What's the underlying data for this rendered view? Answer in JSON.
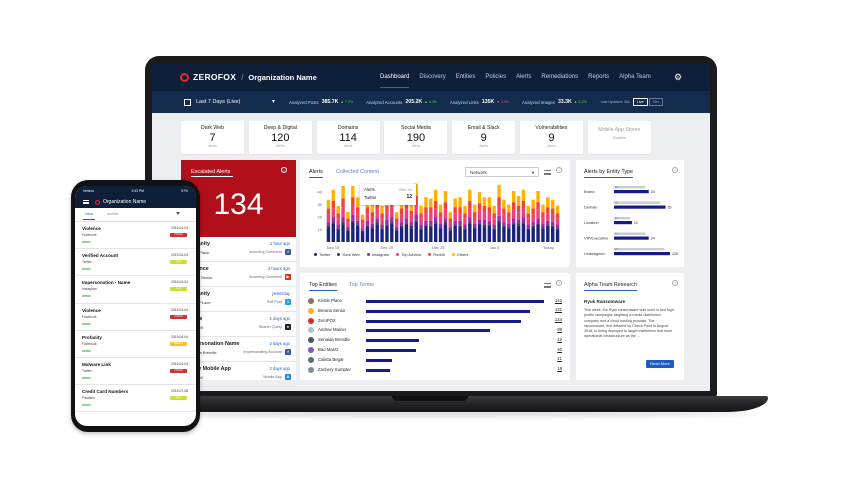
{
  "nav": {
    "logo": "ZEROFOX",
    "separator": "/",
    "org": "Organization Name",
    "links": [
      "Dashboard",
      "Discovery",
      "Entities",
      "Policies",
      "Alerts",
      "Remediations",
      "Reports",
      "Alpha Team"
    ],
    "active_link": "Dashboard"
  },
  "subbar": {
    "date_range": "Last 7 Days (Live)",
    "stats": [
      {
        "label": "Analyzed Posts",
        "value": "385.7",
        "suffix": "K",
        "change": "7.2%",
        "dir": "up"
      },
      {
        "label": "Analyzed Accounts",
        "value": "205.2",
        "suffix": "K",
        "change": "4.4%",
        "dir": "up"
      },
      {
        "label": "Analyzed Links",
        "value": "135",
        "suffix": "K",
        "change": "3.4%",
        "dir": "down"
      },
      {
        "label": "Analyzed Images",
        "value": "33.3",
        "suffix": "K",
        "change": "3.2%",
        "dir": "up"
      }
    ],
    "last_updated": "Last Updated: 30s",
    "live": "Live",
    "seconds": "30s"
  },
  "cards": [
    {
      "title": "Dark Web",
      "count": "7",
      "sub": "Alerts"
    },
    {
      "title": "Deep & Digital",
      "count": "120",
      "sub": "Alerts"
    },
    {
      "title": "Domains",
      "count": "114",
      "sub": "Alerts"
    },
    {
      "title": "Social Media",
      "count": "190",
      "sub": "Alerts"
    },
    {
      "title": "Email & Slack",
      "count": "9",
      "sub": "Alerts"
    },
    {
      "title": "Vulnerabilities",
      "count": "9",
      "sub": "Alerts"
    },
    {
      "title": "Mobile App Stores",
      "count": "",
      "sub": "Disabled"
    }
  ],
  "escalated": {
    "title": "Escalated Alerts",
    "count": "134",
    "items": [
      {
        "name": "Profanity",
        "person": "Kristle Place",
        "time": "1 hour ago",
        "source": "Incoming Comment",
        "icon": "f",
        "icon_color": "#3b5998"
      },
      {
        "name": "Violence",
        "person": "Breana Senior",
        "time": "3 hours ago",
        "source": "Incoming Comment",
        "icon": "▶",
        "icon_color": "#e62117"
      },
      {
        "name": "Profanity",
        "person": "Kristle PLace",
        "time": "yesterday",
        "source": "Self Post",
        "icon": "t",
        "icon_color": "#1da1f2"
      },
      {
        "name": "Drugs",
        "person": "ZeroFOX",
        "time": "2 days ago",
        "source": "Search Query",
        "icon": "●",
        "icon_color": "#222222"
      },
      {
        "name": "Impersonation Name",
        "person": "Senaida Brendle",
        "time": "2 days ago",
        "source": "Impersonating Account",
        "icon": "f",
        "icon_color": "#3b5998"
      },
      {
        "name": "Risky Mobile App",
        "person": "ZeroFOX",
        "time": "2 days ago",
        "source": "Mobile App",
        "icon": "A",
        "icon_color": "#1e88e5"
      }
    ]
  },
  "alerts_panel": {
    "tab_active": "Alerts",
    "tab_inactive": "Collected Content",
    "network": "Network",
    "tooltip": {
      "label": "Alerts",
      "date": "Dec 21",
      "source": "Twitter",
      "value": "12"
    },
    "legend": [
      {
        "name": "Twitter",
        "color": "#1a237e"
      },
      {
        "name": "Dark Web",
        "color": "#3d3d3d"
      },
      {
        "name": "Instagram",
        "color": "#9c27b0"
      },
      {
        "name": "Trip Advisor",
        "color": "#ec407a"
      },
      {
        "name": "Reddit",
        "color": "#f44336"
      },
      {
        "name": "Others",
        "color": "#ffb300"
      }
    ]
  },
  "chart_data": {
    "type": "bar",
    "stacked": true,
    "ylim": [
      0,
      45
    ],
    "yticks": [
      "40",
      "30",
      "20",
      "10"
    ],
    "xticks": [
      "Dec 15",
      "Dec 20",
      "Dec 25",
      "Jan 5",
      "Today"
    ],
    "series": [
      {
        "name": "Twitter",
        "color": "#1a237e",
        "values": [
          12,
          15,
          10,
          14,
          9,
          16,
          13,
          8,
          12,
          11,
          14,
          10,
          13,
          15,
          9,
          12,
          14,
          11,
          16,
          10,
          13,
          12,
          15,
          11,
          14,
          9,
          13,
          12,
          10,
          15,
          11,
          14,
          12,
          13,
          10,
          16,
          12,
          11,
          14,
          13,
          15,
          10,
          12,
          14,
          11,
          13,
          12,
          10
        ]
      },
      {
        "name": "Dark Web",
        "color": "#3d3d3d",
        "values": [
          1,
          1,
          1,
          2,
          1,
          1,
          1,
          1,
          1,
          1,
          2,
          1,
          1,
          1,
          1,
          1,
          1,
          2,
          1,
          1,
          1,
          1,
          1,
          1,
          2,
          1,
          1,
          1,
          1,
          1,
          1,
          1,
          2,
          1,
          1,
          1,
          1,
          1,
          1,
          2,
          1,
          1,
          1,
          1,
          1,
          1,
          1,
          1
        ]
      },
      {
        "name": "Instagram",
        "color": "#9c27b0",
        "values": [
          3,
          4,
          3,
          4,
          2,
          5,
          3,
          2,
          4,
          3,
          3,
          3,
          4,
          4,
          2,
          3,
          4,
          3,
          5,
          3,
          3,
          4,
          4,
          3,
          3,
          2,
          3,
          4,
          3,
          4,
          3,
          3,
          4,
          3,
          3,
          4,
          3,
          3,
          4,
          3,
          4,
          3,
          3,
          4,
          3,
          3,
          3,
          3
        ]
      },
      {
        "name": "Trip Advisor",
        "color": "#ec407a",
        "values": [
          6,
          7,
          5,
          8,
          4,
          7,
          6,
          4,
          6,
          5,
          7,
          5,
          6,
          8,
          4,
          6,
          7,
          5,
          8,
          5,
          6,
          6,
          7,
          5,
          7,
          4,
          6,
          6,
          5,
          7,
          5,
          7,
          6,
          6,
          5,
          8,
          6,
          5,
          7,
          6,
          7,
          5,
          6,
          7,
          5,
          6,
          6,
          5
        ]
      },
      {
        "name": "Reddit",
        "color": "#f44336",
        "values": [
          5,
          6,
          4,
          7,
          3,
          7,
          5,
          3,
          5,
          4,
          6,
          4,
          5,
          7,
          3,
          5,
          6,
          4,
          7,
          4,
          5,
          5,
          6,
          4,
          6,
          3,
          5,
          5,
          4,
          6,
          4,
          6,
          5,
          5,
          4,
          7,
          5,
          4,
          6,
          5,
          6,
          4,
          5,
          6,
          4,
          5,
          5,
          4
        ]
      },
      {
        "name": "Others",
        "color": "#ffb300",
        "values": [
          7,
          9,
          6,
          10,
          5,
          9,
          8,
          4,
          7,
          6,
          9,
          6,
          8,
          10,
          5,
          7,
          9,
          6,
          10,
          6,
          8,
          7,
          9,
          6,
          9,
          5,
          7,
          8,
          6,
          9,
          6,
          9,
          7,
          8,
          6,
          10,
          7,
          6,
          9,
          8,
          9,
          6,
          7,
          9,
          6,
          8,
          7,
          6
        ]
      }
    ],
    "extra_colors": [
      "#4caf50",
      "#00bcd4"
    ]
  },
  "entity_type": {
    "title": "Alerts by Entity Type",
    "rows": [
      {
        "label": "Brand",
        "value": 24,
        "value_label": "24",
        "bar": 0.62
      },
      {
        "label": "Domain",
        "value": 35,
        "value_label": "35",
        "bar": 0.92
      },
      {
        "label": "Location",
        "value": 12,
        "value_label": "12",
        "bar": 0.32
      },
      {
        "label": "VIP/Executive",
        "value": 24,
        "value_label": "24",
        "bar": 0.62
      },
      {
        "label": "Unassigned",
        "value": 126,
        "value_label": "126",
        "bar": 1.0
      }
    ],
    "ghost": [
      "22",
      "22",
      "12",
      "12",
      "24"
    ]
  },
  "top_entities": {
    "tab_active": "Top Entities",
    "tab_inactive": "Top Terms",
    "rows": [
      {
        "name": "Kristle Place",
        "value": 142,
        "color": "#8d6e63"
      },
      {
        "name": "Breana Senior",
        "value": 131,
        "color": "#f2b51f"
      },
      {
        "name": "ZeroFOX",
        "value": 124,
        "color": "#d32f2f"
      },
      {
        "name": "Andree Mainer",
        "value": 99,
        "color": "#bdbdbd"
      },
      {
        "name": "Senaida Brendle",
        "value": 42,
        "color": "#455a64"
      },
      {
        "name": "Bao Mantz",
        "value": 40,
        "color": "#7e57c2"
      },
      {
        "name": "Calista Begar",
        "value": 21,
        "color": "#546e7a"
      },
      {
        "name": "Zachery Sumpter",
        "value": 19,
        "color": "#78909c"
      }
    ]
  },
  "research": {
    "title": "Alpha Team Research",
    "article": "Ryuk Ransomware",
    "body": "This week, the Ryuk ransomware was used in two high profile campaigns targeting a media distribution company and a cloud hosting provider. The ransomware, first detailed by Check Point in August 2018, is being deployed to target institutions that have operational infrastructure as the ...",
    "button": "Read More"
  },
  "phone": {
    "status_left": "Verizon",
    "status_time": "3:43 PM",
    "status_right": "67%",
    "title": "Organization Name",
    "tab_active": "Inbox",
    "tab_inactive": "Archive",
    "items": [
      {
        "name": "Violence",
        "source": "Facebook",
        "status": "OPEN",
        "date": "2019-04-04",
        "badge": "Critical",
        "badge_color": "#d32f2f"
      },
      {
        "name": "Verified Account",
        "source": "Twitter",
        "status": "OPEN",
        "date": "2019-04-04",
        "badge": "Low",
        "badge_color": "#cddc39"
      },
      {
        "name": "Impersonation - Name",
        "source": "Instagram",
        "status": "OPEN",
        "date": "2019-04-04",
        "badge": "Low",
        "badge_color": "#cddc39"
      },
      {
        "name": "Violence",
        "source": "Facebook",
        "status": "OPEN",
        "date": "2019-04-04",
        "badge": "Critical",
        "badge_color": "#d32f2f"
      },
      {
        "name": "Profanity",
        "source": "Facebook",
        "status": "OPEN",
        "date": "2019-04-04",
        "badge": "Medium",
        "badge_color": "#fbc02d"
      },
      {
        "name": "Malware Link",
        "source": "Twitter",
        "status": "OPEN",
        "date": "2019-04-04",
        "badge": "Critical",
        "badge_color": "#d32f2f"
      },
      {
        "name": "Credit Card Numbers",
        "source": "Pastebin",
        "status": "OPEN",
        "date": "2019-07-08",
        "badge": "Low",
        "badge_color": "#cddc39"
      }
    ]
  }
}
